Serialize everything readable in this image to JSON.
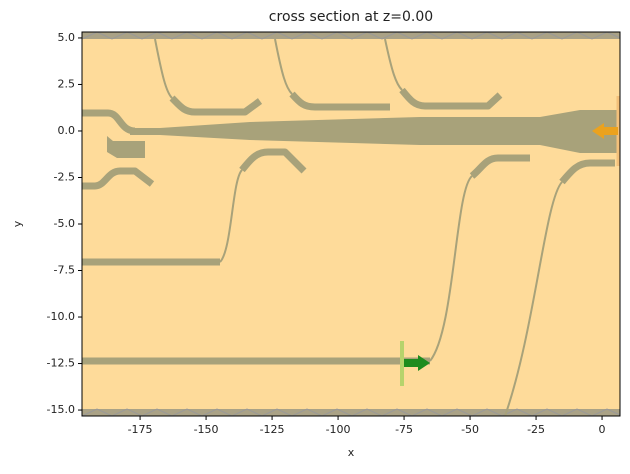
{
  "chart_data": {
    "type": "structure",
    "title": "cross section at z=0.00",
    "x_label": "x",
    "y_label": "y",
    "xlim": [
      -197,
      6.8
    ],
    "ylim": [
      -15.32,
      5.32
    ],
    "xticks": [
      -175,
      -150,
      -125,
      -100,
      -75,
      -50,
      -25,
      0
    ],
    "yticks": [
      {
        "value": 5,
        "label": "5.0"
      },
      2.5,
      {
        "value": 0,
        "label": "0.0"
      },
      -2.5,
      {
        "value": -5,
        "label": "-5.0"
      },
      -7.5,
      {
        "value": -10,
        "label": "-10.0"
      },
      -12.5,
      {
        "value": -15,
        "label": "-15.0"
      }
    ],
    "background_color": "#fedb9a",
    "structure_color": "#a8a27a"
  }
}
